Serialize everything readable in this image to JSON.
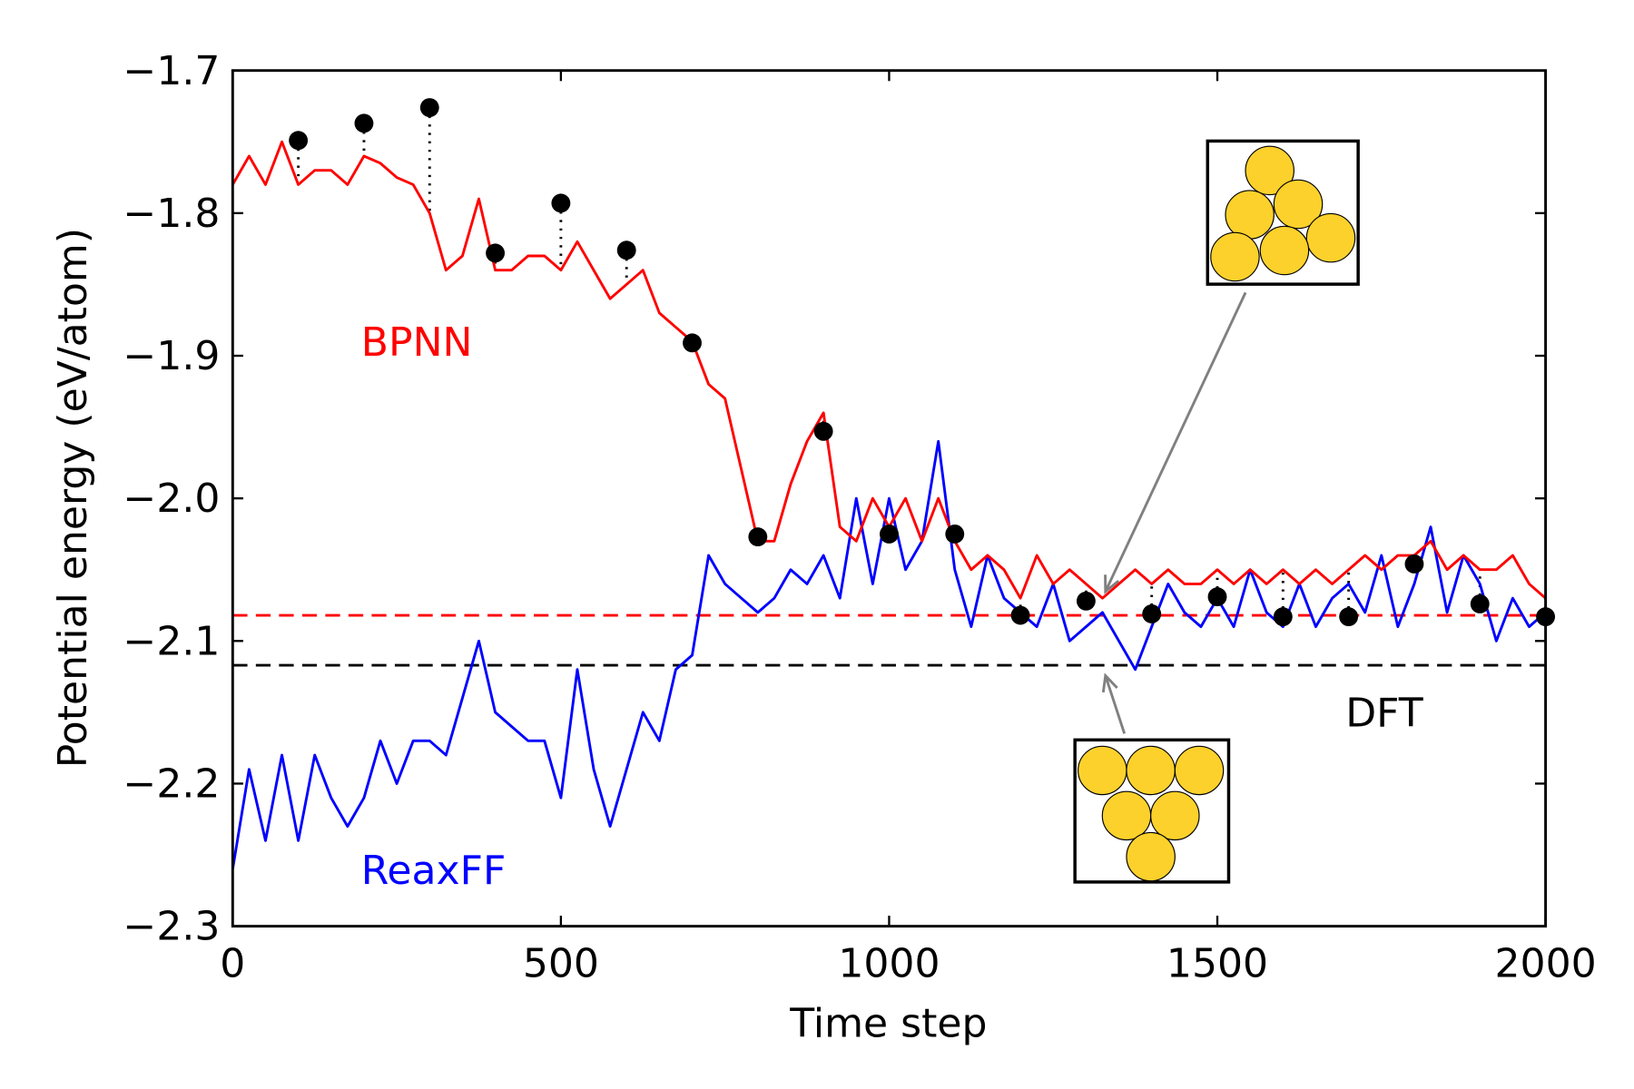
{
  "chart_data": {
    "type": "line",
    "xlabel": "Time step",
    "ylabel": "Potential energy (eV/atom)",
    "xlim": [
      0,
      2000
    ],
    "ylim": [
      -2.3,
      -1.7
    ],
    "xticks": [
      0,
      500,
      1000,
      1500,
      2000
    ],
    "yticks": [
      {
        "value": -2.3,
        "label": "−2.3"
      },
      {
        "value": -2.2,
        "label": "−2.2"
      },
      {
        "value": -2.1,
        "label": "−2.1"
      },
      {
        "value": -2.0,
        "label": "−2.0"
      },
      {
        "value": -1.9,
        "label": "−1.9"
      },
      {
        "value": -1.8,
        "label": "−1.8"
      },
      {
        "value": -1.7,
        "label": "−1.7"
      }
    ],
    "x": [
      0,
      25,
      50,
      75,
      100,
      125,
      150,
      175,
      200,
      225,
      250,
      275,
      300,
      325,
      350,
      375,
      400,
      425,
      450,
      475,
      500,
      525,
      550,
      575,
      600,
      625,
      650,
      675,
      700,
      725,
      750,
      775,
      800,
      825,
      850,
      875,
      900,
      925,
      950,
      975,
      1000,
      1025,
      1050,
      1075,
      1100,
      1125,
      1150,
      1175,
      1200,
      1225,
      1250,
      1275,
      1300,
      1325,
      1350,
      1375,
      1400,
      1425,
      1450,
      1475,
      1500,
      1525,
      1550,
      1575,
      1600,
      1625,
      1650,
      1675,
      1700,
      1725,
      1750,
      1775,
      1800,
      1825,
      1850,
      1875,
      1900,
      1925,
      1950,
      1975,
      2000
    ],
    "series": [
      {
        "name": "BPNN",
        "color": "#ff0000",
        "values": [
          -1.78,
          -1.76,
          -1.78,
          -1.75,
          -1.78,
          -1.77,
          -1.77,
          -1.78,
          -1.76,
          -1.765,
          -1.775,
          -1.78,
          -1.8,
          -1.84,
          -1.83,
          -1.79,
          -1.84,
          -1.84,
          -1.83,
          -1.83,
          -1.84,
          -1.82,
          -1.84,
          -1.86,
          -1.85,
          -1.84,
          -1.87,
          -1.88,
          -1.89,
          -1.92,
          -1.93,
          -1.98,
          -2.03,
          -2.03,
          -1.99,
          -1.96,
          -1.94,
          -2.02,
          -2.03,
          -2.0,
          -2.02,
          -2.0,
          -2.03,
          -2.0,
          -2.03,
          -2.05,
          -2.04,
          -2.05,
          -2.07,
          -2.04,
          -2.06,
          -2.05,
          -2.06,
          -2.07,
          -2.06,
          -2.05,
          -2.06,
          -2.05,
          -2.06,
          -2.06,
          -2.05,
          -2.06,
          -2.05,
          -2.06,
          -2.05,
          -2.06,
          -2.05,
          -2.06,
          -2.05,
          -2.04,
          -2.05,
          -2.04,
          -2.04,
          -2.03,
          -2.05,
          -2.04,
          -2.05,
          -2.05,
          -2.04,
          -2.06,
          -2.07
        ]
      },
      {
        "name": "ReaxFF",
        "color": "#0000ff",
        "values": [
          -2.26,
          -2.19,
          -2.24,
          -2.18,
          -2.24,
          -2.18,
          -2.21,
          -2.23,
          -2.21,
          -2.17,
          -2.2,
          -2.17,
          -2.17,
          -2.18,
          -2.14,
          -2.1,
          -2.15,
          -2.16,
          -2.17,
          -2.17,
          -2.21,
          -2.12,
          -2.19,
          -2.23,
          -2.19,
          -2.15,
          -2.17,
          -2.12,
          -2.11,
          -2.04,
          -2.06,
          -2.07,
          -2.08,
          -2.07,
          -2.05,
          -2.06,
          -2.04,
          -2.07,
          -2.0,
          -2.06,
          -2.0,
          -2.05,
          -2.03,
          -1.96,
          -2.05,
          -2.09,
          -2.04,
          -2.07,
          -2.08,
          -2.09,
          -2.06,
          -2.1,
          -2.09,
          -2.08,
          -2.1,
          -2.12,
          -2.09,
          -2.06,
          -2.08,
          -2.09,
          -2.07,
          -2.09,
          -2.05,
          -2.08,
          -2.09,
          -2.06,
          -2.09,
          -2.07,
          -2.06,
          -2.08,
          -2.04,
          -2.09,
          -2.06,
          -2.02,
          -2.08,
          -2.04,
          -2.06,
          -2.1,
          -2.07,
          -2.09,
          -2.08
        ]
      }
    ],
    "points": {
      "name": "DFT",
      "color": "#000000",
      "x": [
        100,
        200,
        300,
        400,
        500,
        600,
        700,
        800,
        900,
        1000,
        1100,
        1200,
        1300,
        1400,
        1500,
        1600,
        1700,
        1800,
        1900,
        2000
      ],
      "values": [
        -1.749,
        -1.737,
        -1.726,
        -1.828,
        -1.793,
        -1.826,
        -1.891,
        -2.027,
        -1.953,
        -2.025,
        -2.025,
        -2.082,
        -2.072,
        -2.081,
        -2.069,
        -2.083,
        -2.083,
        -2.046,
        -2.074,
        -2.083
      ]
    },
    "reference_lines": [
      {
        "value": -2.082,
        "color": "#ff0000"
      },
      {
        "value": -2.117,
        "color": "#000000"
      }
    ]
  }
}
